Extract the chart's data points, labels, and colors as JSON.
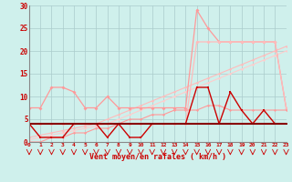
{
  "x": [
    0,
    1,
    2,
    3,
    4,
    5,
    6,
    7,
    8,
    9,
    10,
    11,
    12,
    13,
    14,
    15,
    16,
    17,
    18,
    19,
    20,
    21,
    22,
    23
  ],
  "line_rafales_light": [
    7.5,
    7.5,
    12,
    12,
    11,
    7.5,
    7.5,
    10,
    7.5,
    7.5,
    7.5,
    7.5,
    7.5,
    7.5,
    7.5,
    29,
    25,
    22,
    22,
    22,
    22,
    22,
    22,
    7.5
  ],
  "line_rafales_mid": [
    4,
    4,
    4,
    4,
    4,
    4,
    4,
    4,
    4,
    4,
    4,
    4,
    4,
    4,
    4,
    22,
    22,
    22,
    22,
    22,
    22,
    22,
    22,
    7.5
  ],
  "line_moyen_dark": [
    4,
    1,
    1,
    1,
    4,
    4,
    4,
    1,
    4,
    1,
    1,
    4,
    4,
    4,
    4,
    12,
    12,
    4,
    11,
    7,
    4,
    7,
    4,
    4
  ],
  "line_flat": [
    4,
    4,
    4,
    4,
    4,
    4,
    4,
    4,
    4,
    4,
    4,
    4,
    4,
    4,
    4,
    4,
    4,
    4,
    4,
    4,
    4,
    4,
    4,
    4
  ],
  "line_trend1": [
    0.5,
    1,
    1.5,
    2,
    2.5,
    3,
    3.5,
    4,
    5,
    6,
    7,
    8,
    9,
    10,
    11,
    12,
    13,
    14,
    15,
    16,
    17,
    18,
    19,
    20
  ],
  "line_trend2": [
    1,
    1.5,
    2,
    2.5,
    3,
    3.5,
    4,
    5,
    6,
    7,
    8,
    9,
    10,
    11,
    12,
    13,
    14,
    15,
    16,
    17,
    18,
    19,
    20,
    21
  ],
  "line_bot": [
    0,
    0,
    1,
    1,
    2,
    2,
    3,
    3,
    4,
    5,
    5,
    6,
    6,
    7,
    7,
    7,
    8,
    8,
    7,
    7,
    7,
    7,
    7,
    7
  ],
  "colors": {
    "rafales_light": "#ff9999",
    "rafales_mid": "#ffbbbb",
    "moyen_dark": "#cc0000",
    "flat": "#880000",
    "trend1": "#ffcccc",
    "trend2": "#ffbbbb",
    "bot": "#cc2222"
  },
  "bg_color": "#cff0ec",
  "grid_color": "#aacccc",
  "xlabel": "Vent moyen/en rafales ( km/h )",
  "ylim": [
    0,
    30
  ],
  "xlim": [
    0,
    23
  ],
  "yticks": [
    0,
    5,
    10,
    15,
    20,
    25,
    30
  ],
  "xticks": [
    0,
    1,
    2,
    3,
    4,
    5,
    6,
    7,
    8,
    9,
    10,
    11,
    12,
    13,
    14,
    15,
    16,
    17,
    18,
    19,
    20,
    21,
    22,
    23
  ]
}
